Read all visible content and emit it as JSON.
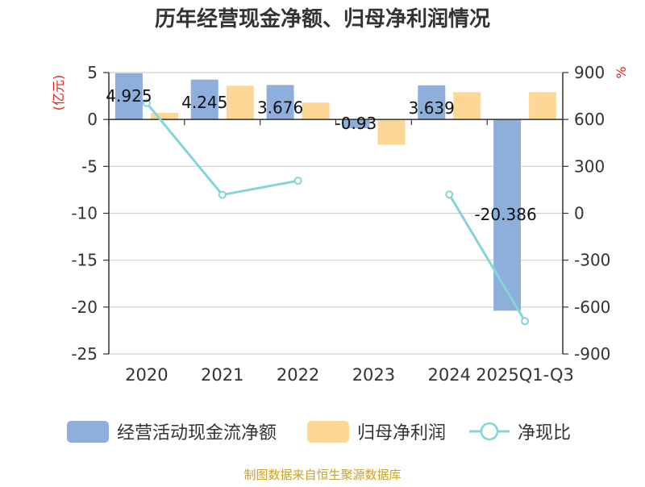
{
  "chart_data": {
    "type": "bar",
    "title": "历年经营现金净额、归母净利润情况",
    "categories": [
      "2020",
      "2021",
      "2022",
      "2023",
      "2024",
      "2025Q1-Q3"
    ],
    "y_left": {
      "label": "(亿元)",
      "ylim": [
        -25,
        5
      ],
      "ticks": [
        5,
        0,
        -5,
        -10,
        -15,
        -20,
        -25
      ]
    },
    "y_right": {
      "label": "%",
      "ylim": [
        -900,
        900
      ],
      "ticks": [
        900,
        600,
        300,
        0,
        -300,
        -600,
        -900
      ]
    },
    "series": [
      {
        "name": "经营活动现金流净额",
        "type": "bar",
        "axis": "left",
        "color": "#8eaedb",
        "values": [
          4.925,
          4.245,
          3.676,
          -0.93,
          3.639,
          -20.386
        ],
        "labels": [
          "4.925",
          "4.245",
          "3.676",
          "-0.93",
          "3.639",
          "-20.386"
        ]
      },
      {
        "name": "归母净利润",
        "type": "bar",
        "axis": "left",
        "color": "#fdd796",
        "values": [
          0.7,
          3.6,
          1.8,
          -2.7,
          2.9,
          2.9
        ]
      },
      {
        "name": "净现比",
        "type": "line",
        "axis": "right",
        "color": "#85d4d6",
        "values": [
          705,
          118,
          208,
          null,
          120,
          -690
        ]
      }
    ],
    "grid": true,
    "legend_position": "bottom"
  },
  "source_note": "制图数据来自恒生聚源数据库"
}
